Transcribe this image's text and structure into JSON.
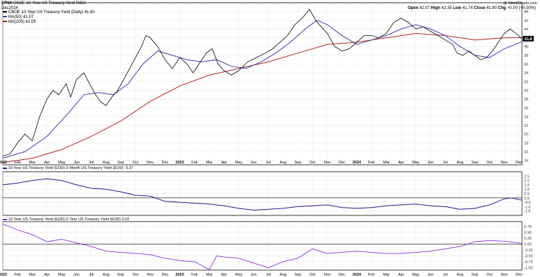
{
  "header": {
    "symbol": "$TNX",
    "name": "CBOE 10-Year US Treasury Yield",
    "exchange": "INDX",
    "date": "Dec2024",
    "watermark": "@ StockCharts.com",
    "quote": {
      "open_label": "Open",
      "open": "42.07",
      "high_label": "High",
      "high": "42.35",
      "low_label": "Low",
      "low": "41.74",
      "close_label": "Close",
      "close": "41.80",
      "change_label": "Chg",
      "change": "+0.00 (+0.00%)"
    },
    "last_value_badge": "41.8"
  },
  "legend": {
    "main": {
      "text": "CBOE 10-Year US Treasury Yield (Daily) 41.80",
      "color": "#000000"
    },
    "ma50": {
      "text": "MA(50) 41.07",
      "color": "#3b3ba8"
    },
    "ma200": {
      "text": "MA(200) 42.05",
      "color": "#b22222"
    }
  },
  "panel2_label": "10-Year US Treasury Yield (EOD)-3-Month US Treasury Yield (EOD) -0.27",
  "panel3_label": "10-Year US Treasury Yield (EOD)-2-Year US Treasury Yield (EOD) 0.03",
  "x_labels": [
    "2022",
    "Feb",
    "Mar",
    "Apr",
    "May",
    "Jun",
    "Jul",
    "Aug",
    "Sep",
    "Oct",
    "Nov",
    "Dec",
    "2023",
    "Feb",
    "Mar",
    "Apr",
    "May",
    "Jun",
    "Jul",
    "Aug",
    "Sep",
    "Oct",
    "Nov",
    "Dec",
    "2024",
    "Feb",
    "Mar",
    "Apr",
    "May",
    "Jun",
    "Jul",
    "Aug",
    "Sep",
    "Oct",
    "Nov",
    "Dec"
  ],
  "chart_data": [
    {
      "type": "line",
      "title": "CBOE 10-Year US Treasury Yield",
      "ylim": [
        13,
        50
      ],
      "y_ticks": [
        14,
        16,
        18,
        20,
        22,
        24,
        26,
        28,
        30,
        32,
        34,
        36,
        38,
        40,
        42,
        44,
        46,
        48
      ],
      "x_range_months": [
        0,
        35.2
      ],
      "colors": {
        "price": "#000000",
        "ma50": "#3b3ba8",
        "ma200": "#b22222"
      },
      "series": [
        {
          "name": "CBOE 10-Year US Treasury Yield (Daily)",
          "points": [
            [
              0,
              15.0
            ],
            [
              0.5,
              15.5
            ],
            [
              1,
              18.0
            ],
            [
              1.5,
              20.0
            ],
            [
              2,
              18.5
            ],
            [
              2.5,
              24.0
            ],
            [
              3,
              28.0
            ],
            [
              3.4,
              30.0
            ],
            [
              3.8,
              29.0
            ],
            [
              4.3,
              31.5
            ],
            [
              4.6,
              28.5
            ],
            [
              5.0,
              32.5
            ],
            [
              5.5,
              34.0
            ],
            [
              5.8,
              32.0
            ],
            [
              6.2,
              29.5
            ],
            [
              6.6,
              27.5
            ],
            [
              7.0,
              26.5
            ],
            [
              7.4,
              28.5
            ],
            [
              7.8,
              30.0
            ],
            [
              8.2,
              32.5
            ],
            [
              8.6,
              35.0
            ],
            [
              9.0,
              37.5
            ],
            [
              9.4,
              40.0
            ],
            [
              9.7,
              42.5
            ],
            [
              10.0,
              42.0
            ],
            [
              10.5,
              40.0
            ],
            [
              11.0,
              37.0
            ],
            [
              11.5,
              35.0
            ],
            [
              12.0,
              37.5
            ],
            [
              12.5,
              36.0
            ],
            [
              12.9,
              34.0
            ],
            [
              13.3,
              36.0
            ],
            [
              13.8,
              38.5
            ],
            [
              14.2,
              39.5
            ],
            [
              14.6,
              36.0
            ],
            [
              15.0,
              34.5
            ],
            [
              15.5,
              33.5
            ],
            [
              16.0,
              34.5
            ],
            [
              16.6,
              36.5
            ],
            [
              17.2,
              37.5
            ],
            [
              17.8,
              38.5
            ],
            [
              18.3,
              39.5
            ],
            [
              18.8,
              41.0
            ],
            [
              19.3,
              42.5
            ],
            [
              19.8,
              45.0
            ],
            [
              20.3,
              46.5
            ],
            [
              20.8,
              48.5
            ],
            [
              21.2,
              46.0
            ],
            [
              21.6,
              44.5
            ],
            [
              22.0,
              43.0
            ],
            [
              22.5,
              40.0
            ],
            [
              23.0,
              39.0
            ],
            [
              23.5,
              39.5
            ],
            [
              24.0,
              41.0
            ],
            [
              24.5,
              42.5
            ],
            [
              25.0,
              42.5
            ],
            [
              25.5,
              42.0
            ],
            [
              26.0,
              43.0
            ],
            [
              26.5,
              45.5
            ],
            [
              27.0,
              46.5
            ],
            [
              27.5,
              45.5
            ],
            [
              28.0,
              44.0
            ],
            [
              28.5,
              44.5
            ],
            [
              29.0,
              43.5
            ],
            [
              29.5,
              42.5
            ],
            [
              30.0,
              41.5
            ],
            [
              30.5,
              40.5
            ],
            [
              30.8,
              38.5
            ],
            [
              31.2,
              38.0
            ],
            [
              31.6,
              39.0
            ],
            [
              32.0,
              38.0
            ],
            [
              32.4,
              37.0
            ],
            [
              32.8,
              37.5
            ],
            [
              33.2,
              39.0
            ],
            [
              33.6,
              41.0
            ],
            [
              34.0,
              43.0
            ],
            [
              34.4,
              44.0
            ],
            [
              34.8,
              43.0
            ],
            [
              35.2,
              41.8
            ]
          ]
        },
        {
          "name": "MA(50)",
          "points": [
            [
              0,
              14.5
            ],
            [
              1.5,
              16.0
            ],
            [
              3,
              19.5
            ],
            [
              4.5,
              25.0
            ],
            [
              5.5,
              29.0
            ],
            [
              6.5,
              29.5
            ],
            [
              7.5,
              29.0
            ],
            [
              8.5,
              31.5
            ],
            [
              9.5,
              36.0
            ],
            [
              10.5,
              39.0
            ],
            [
              11.5,
              38.0
            ],
            [
              12.5,
              37.0
            ],
            [
              13.5,
              36.5
            ],
            [
              14.5,
              37.0
            ],
            [
              15.5,
              35.5
            ],
            [
              16.5,
              35.0
            ],
            [
              17.5,
              36.5
            ],
            [
              18.5,
              38.5
            ],
            [
              19.5,
              41.0
            ],
            [
              20.5,
              44.0
            ],
            [
              21.3,
              46.0
            ],
            [
              22.0,
              45.0
            ],
            [
              23.0,
              42.5
            ],
            [
              24.0,
              40.5
            ],
            [
              25.0,
              41.5
            ],
            [
              26.0,
              42.5
            ],
            [
              27.0,
              44.0
            ],
            [
              28.0,
              45.0
            ],
            [
              29.0,
              44.0
            ],
            [
              30.0,
              42.5
            ],
            [
              31.0,
              40.0
            ],
            [
              32.0,
              38.0
            ],
            [
              33.0,
              37.5
            ],
            [
              34.0,
              39.5
            ],
            [
              35.2,
              41.1
            ]
          ]
        },
        {
          "name": "MA(200)",
          "points": [
            [
              0,
              13.5
            ],
            [
              2,
              14.5
            ],
            [
              4,
              16.5
            ],
            [
              6,
              19.5
            ],
            [
              8,
              23.0
            ],
            [
              10,
              27.5
            ],
            [
              12,
              31.0
            ],
            [
              14,
              33.5
            ],
            [
              16,
              35.0
            ],
            [
              18,
              36.5
            ],
            [
              20,
              38.5
            ],
            [
              22,
              40.5
            ],
            [
              24,
              41.0
            ],
            [
              26,
              42.0
            ],
            [
              28,
              43.0
            ],
            [
              30,
              42.5
            ],
            [
              32,
              41.5
            ],
            [
              34,
              42.0
            ],
            [
              35.2,
              42.05
            ]
          ]
        }
      ]
    },
    {
      "type": "line",
      "title": "10-Year US Treasury Yield (EOD)-3-Month US Treasury Yield (EOD)",
      "ylim": [
        -2.0,
        3.0
      ],
      "y_ticks": [
        -1.5,
        -1.0,
        -0.5,
        0.0,
        0.5,
        1.0,
        1.5,
        2.0,
        2.5
      ],
      "y_tick_labels": [
        "-1.5",
        "-1.0",
        "-0.5",
        "0.0",
        "0.5",
        "1.0",
        "1.5",
        "2.0",
        "2.5"
      ],
      "reference_line": 0.0,
      "color": "#1a1a8c",
      "series": [
        {
          "name": "10-Year US Treasury Yield (EOD)-3-Month US Treasury Yield (EOD)",
          "points": [
            [
              0,
              1.5
            ],
            [
              1,
              1.7
            ],
            [
              2,
              2.0
            ],
            [
              3,
              2.2
            ],
            [
              4,
              2.0
            ],
            [
              5,
              1.5
            ],
            [
              6,
              1.1
            ],
            [
              7,
              1.0
            ],
            [
              8,
              0.7
            ],
            [
              9,
              0.3
            ],
            [
              10,
              0.2
            ],
            [
              11,
              -0.4
            ],
            [
              12,
              -0.5
            ],
            [
              13,
              -0.6
            ],
            [
              14,
              -0.7
            ],
            [
              15,
              -0.9
            ],
            [
              16,
              -1.2
            ],
            [
              17,
              -1.4
            ],
            [
              18,
              -1.3
            ],
            [
              19,
              -1.2
            ],
            [
              20,
              -1.0
            ],
            [
              21,
              -0.9
            ],
            [
              22,
              -0.8
            ],
            [
              23,
              -1.1
            ],
            [
              24,
              -1.2
            ],
            [
              25,
              -1.1
            ],
            [
              26,
              -0.9
            ],
            [
              27,
              -0.8
            ],
            [
              28,
              -0.7
            ],
            [
              29,
              -0.9
            ],
            [
              30,
              -1.0
            ],
            [
              31,
              -1.3
            ],
            [
              32,
              -1.2
            ],
            [
              33,
              -0.8
            ],
            [
              34,
              -0.1
            ],
            [
              34.5,
              0.0
            ],
            [
              35.2,
              -0.27
            ]
          ]
        }
      ]
    },
    {
      "type": "line",
      "title": "10-Year US Treasury Yield (EOD)-2-Year US Treasury Yield (EOD)",
      "ylim": [
        -1.1,
        0.95
      ],
      "y_ticks": [
        -1.0,
        -0.75,
        -0.5,
        -0.25,
        0.0,
        0.25,
        0.5,
        0.75
      ],
      "y_tick_labels": [
        "-1.00",
        "-0.75",
        "-0.50",
        "-0.25",
        "0.00",
        "0.25",
        "0.50",
        "0.75"
      ],
      "reference_line": 0.0,
      "color": "#8a2be2",
      "series": [
        {
          "name": "10-Year US Treasury Yield (EOD)-2-Year US Treasury Yield (EOD)",
          "points": [
            [
              0,
              0.85
            ],
            [
              1,
              0.6
            ],
            [
              2,
              0.4
            ],
            [
              3,
              0.1
            ],
            [
              4,
              0.2
            ],
            [
              5,
              0.05
            ],
            [
              6,
              -0.1
            ],
            [
              7,
              -0.3
            ],
            [
              8,
              -0.35
            ],
            [
              9,
              -0.4
            ],
            [
              10,
              -0.45
            ],
            [
              11,
              -0.6
            ],
            [
              12,
              -0.7
            ],
            [
              13,
              -0.75
            ],
            [
              14,
              -1.08
            ],
            [
              14.5,
              -0.5
            ],
            [
              15,
              -0.55
            ],
            [
              16,
              -0.6
            ],
            [
              17,
              -0.8
            ],
            [
              18,
              -1.0
            ],
            [
              19,
              -0.75
            ],
            [
              20,
              -0.6
            ],
            [
              21,
              -0.2
            ],
            [
              22,
              -0.4
            ],
            [
              23,
              -0.35
            ],
            [
              24,
              -0.3
            ],
            [
              25,
              -0.35
            ],
            [
              26,
              -0.4
            ],
            [
              27,
              -0.4
            ],
            [
              28,
              -0.35
            ],
            [
              29,
              -0.3
            ],
            [
              30,
              -0.2
            ],
            [
              31,
              -0.1
            ],
            [
              32,
              0.1
            ],
            [
              33,
              0.15
            ],
            [
              34,
              0.12
            ],
            [
              35.2,
              0.03
            ]
          ]
        }
      ]
    }
  ]
}
